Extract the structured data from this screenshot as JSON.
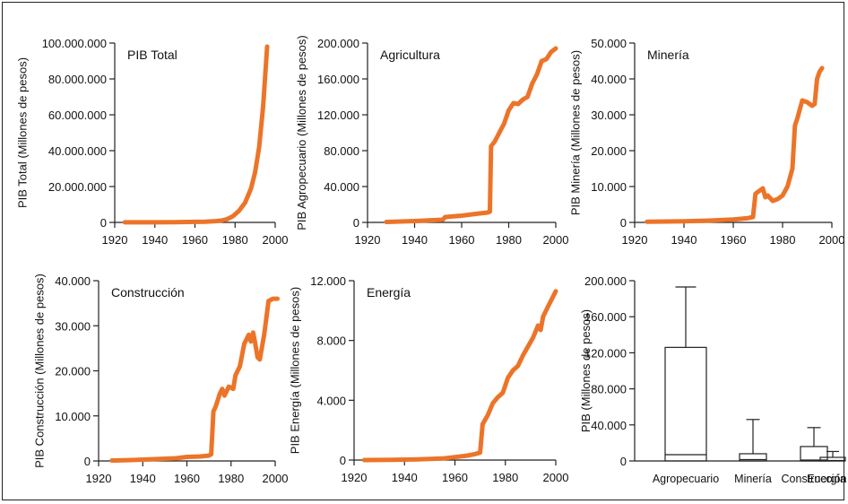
{
  "title": "",
  "colors": {
    "series": "#EC7429",
    "axis": "#222222",
    "box": "#222222"
  },
  "chart_data": [
    {
      "type": "line",
      "id": "pib-total",
      "panel_label": "PIB Total",
      "ylabel": "PIB Total (Millones de pesos)",
      "xlim": [
        1920,
        2000
      ],
      "ylim": [
        0,
        100000000
      ],
      "x_ticks": [
        "1920",
        "1940",
        "1960",
        "1980",
        "2000"
      ],
      "y_ticks": [
        "0",
        "20.000.000",
        "40.000.000",
        "60.000.000",
        "80.000.000",
        "100.000.000"
      ],
      "x": [
        1925,
        1940,
        1950,
        1960,
        1965,
        1970,
        1973,
        1976,
        1979,
        1982,
        1985,
        1988,
        1990,
        1992,
        1994,
        1996
      ],
      "y": [
        50000,
        60000,
        150000,
        300000,
        400000,
        700000,
        1000000,
        1800000,
        3500000,
        6500000,
        11000000,
        19000000,
        28000000,
        42000000,
        65000000,
        98000000
      ]
    },
    {
      "type": "line",
      "id": "agricultura",
      "panel_label": "Agricultura",
      "ylabel": "PIB Agropecuario (Millones de pesos)",
      "xlim": [
        1920,
        2000
      ],
      "ylim": [
        0,
        200000
      ],
      "x_ticks": [
        "1920",
        "1940",
        "1960",
        "1980",
        "2000"
      ],
      "y_ticks": [
        "0",
        "40.000",
        "80.000",
        "120.000",
        "160.000",
        "200.000"
      ],
      "x": [
        1928,
        1940,
        1952,
        1953,
        1960,
        1966,
        1971,
        1972,
        1972.5,
        1974,
        1976,
        1978,
        1980,
        1982,
        1984,
        1986,
        1988,
        1990,
        1992,
        1994,
        1996,
        1998,
        2000
      ],
      "y": [
        500,
        1500,
        3000,
        6000,
        7500,
        9500,
        11000,
        12000,
        85000,
        90000,
        100000,
        110000,
        125000,
        133000,
        132000,
        137000,
        140000,
        155000,
        165000,
        180000,
        182000,
        190000,
        194000
      ]
    },
    {
      "type": "line",
      "id": "mineria",
      "panel_label": "Minería",
      "ylabel": "PIB Minería (Millones de pesos)",
      "xlim": [
        1920,
        2000
      ],
      "ylim": [
        0,
        50000
      ],
      "x_ticks": [
        "1920",
        "1940",
        "1960",
        "1980",
        "2000"
      ],
      "y_ticks": [
        "0",
        "10.000",
        "20.000",
        "30.000",
        "40.000",
        "50.000"
      ],
      "x": [
        1925,
        1940,
        1950,
        1960,
        1966,
        1968,
        1969,
        1970,
        1972,
        1973,
        1974,
        1976,
        1978,
        1980,
        1982,
        1984,
        1985,
        1986,
        1988,
        1990,
        1992,
        1993,
        1994,
        1995,
        1996
      ],
      "y": [
        200,
        300,
        500,
        800,
        1200,
        1500,
        8000,
        8500,
        9500,
        7000,
        7500,
        6000,
        6500,
        7500,
        10000,
        15000,
        27000,
        29000,
        34000,
        33500,
        32500,
        33000,
        40000,
        42000,
        43000
      ]
    },
    {
      "type": "line",
      "id": "construccion",
      "panel_label": "Construcción",
      "ylabel": "PIB Construcción (Millones de pesos)",
      "xlim": [
        1920,
        2000
      ],
      "ylim": [
        0,
        40000
      ],
      "x_ticks": [
        "1920",
        "1940",
        "1960",
        "1980",
        "2000"
      ],
      "y_ticks": [
        "0",
        "10.000",
        "20.000",
        "30.000",
        "40.000"
      ],
      "x": [
        1926,
        1935,
        1945,
        1955,
        1960,
        1966,
        1970,
        1971,
        1972,
        1973,
        1975,
        1976,
        1977,
        1979,
        1981,
        1982,
        1984,
        1986,
        1988,
        1989,
        1990,
        1991,
        1992,
        1993,
        1995,
        1997,
        1999,
        2001
      ],
      "y": [
        100,
        200,
        400,
        600,
        900,
        1000,
        1200,
        1500,
        11000,
        12000,
        15000,
        16000,
        14500,
        16500,
        16000,
        19000,
        21000,
        26000,
        28000,
        26500,
        28500,
        26000,
        23000,
        22500,
        28000,
        35500,
        36000,
        36000
      ]
    },
    {
      "type": "line",
      "id": "energia",
      "panel_label": "Energía",
      "ylabel": "PIB Energía (Millones de pesos)",
      "xlim": [
        1920,
        2000
      ],
      "ylim": [
        0,
        12000
      ],
      "x_ticks": [
        "1920",
        "1940",
        "1960",
        "1980",
        "2000"
      ],
      "y_ticks": [
        "0",
        "4.000",
        "8.000",
        "12.000"
      ],
      "x": [
        1924,
        1935,
        1945,
        1955,
        1960,
        1965,
        1968,
        1970,
        1971,
        1973,
        1975,
        1977,
        1979,
        1981,
        1983,
        1985,
        1987,
        1989,
        1991,
        1993,
        1994,
        1995,
        1997,
        2000
      ],
      "y": [
        0,
        10,
        40,
        100,
        200,
        300,
        400,
        500,
        2400,
        3000,
        3800,
        4200,
        4500,
        5500,
        6000,
        6300,
        7000,
        7600,
        8200,
        9000,
        8700,
        9600,
        10300,
        11300
      ]
    },
    {
      "type": "box",
      "id": "boxplot",
      "ylabel": "PIB (Millones de pesos)",
      "ylim": [
        0,
        200000
      ],
      "y_ticks": [
        "0",
        "40.000",
        "80.000",
        "120.000",
        "160.000",
        "200.000"
      ],
      "categories": [
        "Agropecuario",
        "Minería",
        "Construcción",
        "Energía"
      ],
      "min": [
        0,
        0,
        0,
        0
      ],
      "q1": [
        0,
        0,
        0,
        0
      ],
      "median": [
        7000,
        1500,
        1000,
        500
      ],
      "q3": [
        126000,
        8000,
        16000,
        4000
      ],
      "max": [
        193000,
        46000,
        37000,
        10500
      ]
    }
  ]
}
